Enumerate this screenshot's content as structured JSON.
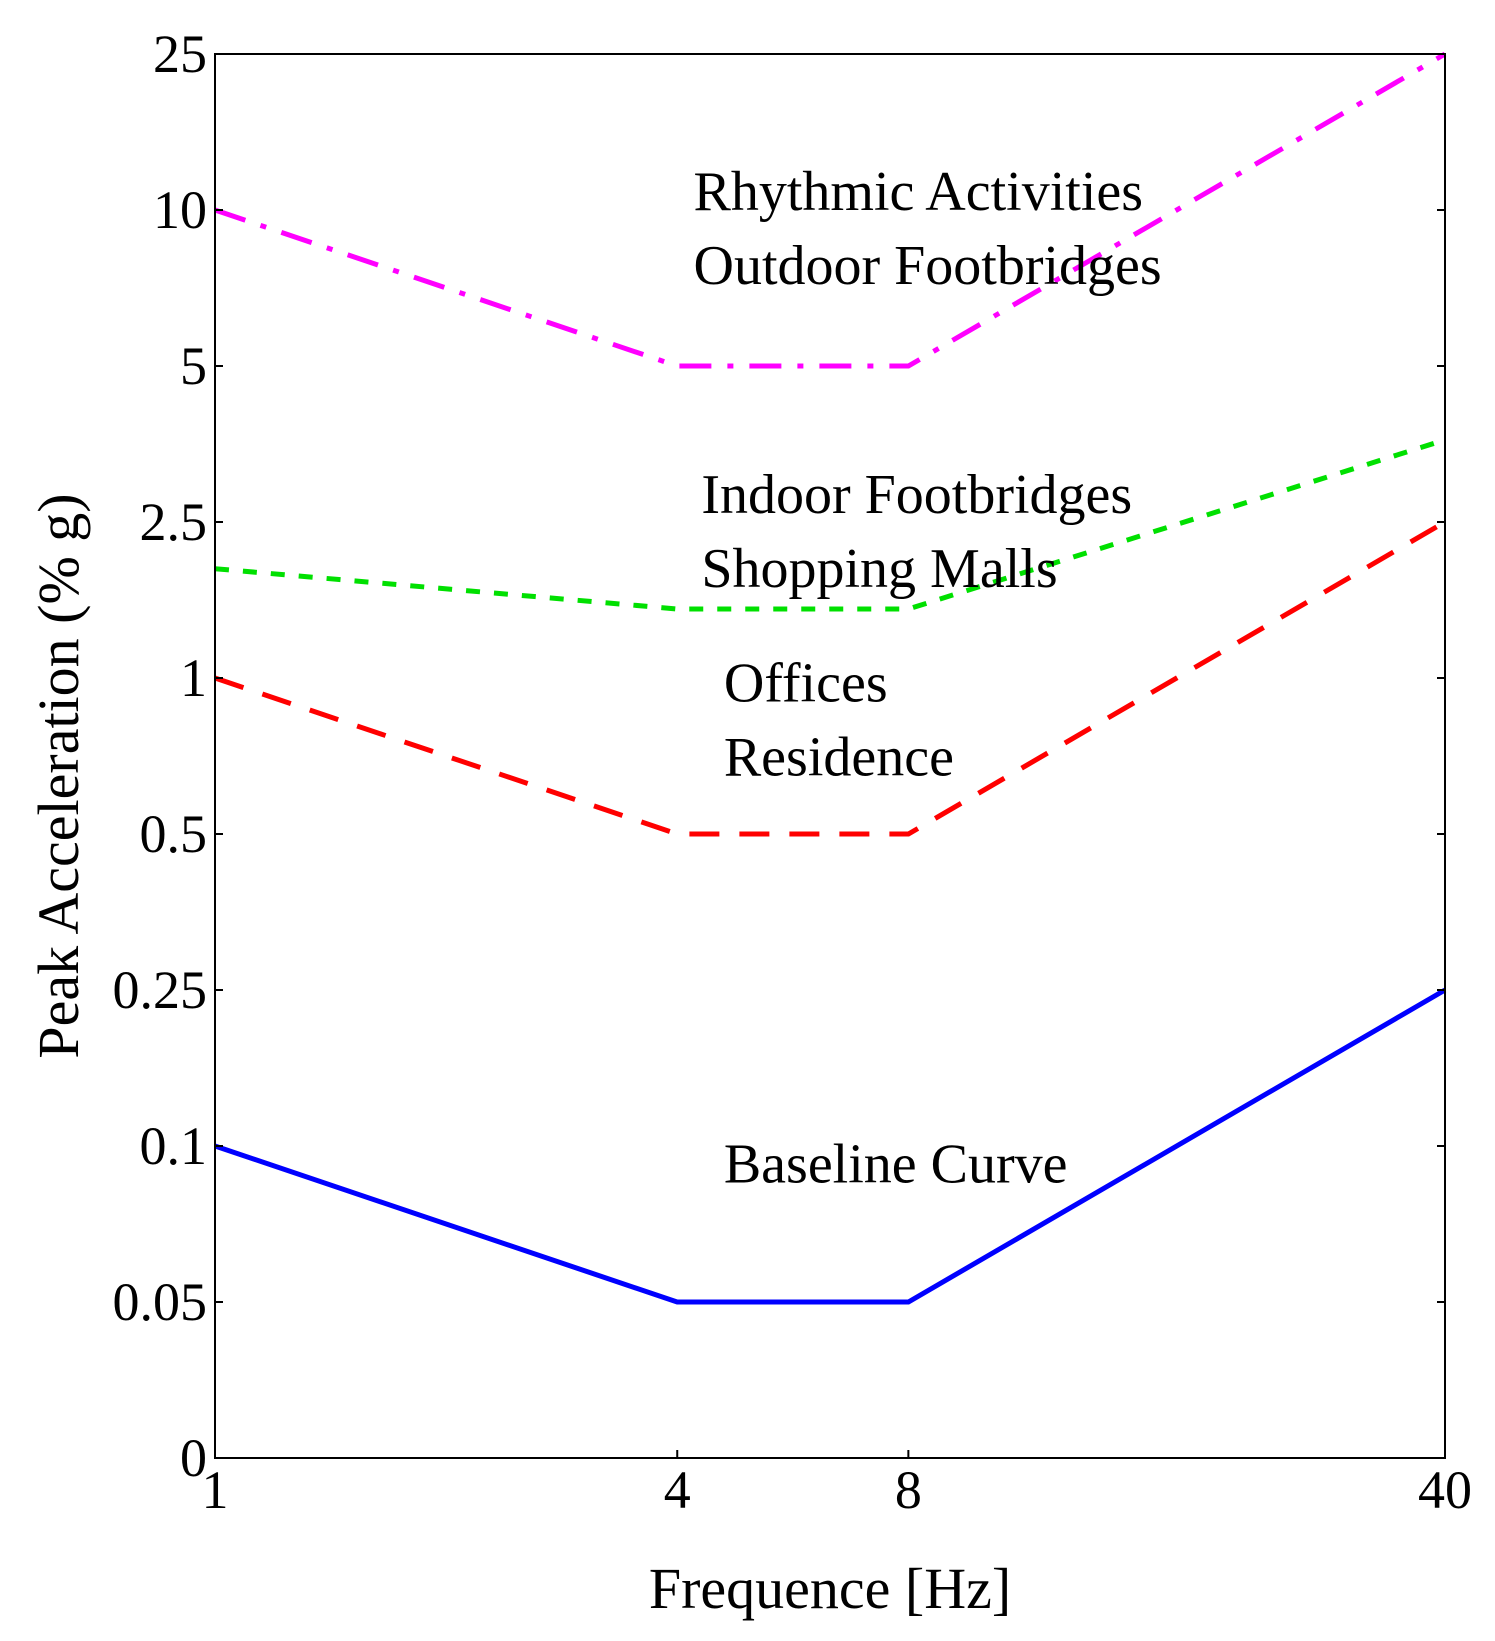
{
  "chart_data": {
    "type": "line",
    "title": "",
    "xlabel": "Frequence [Hz]",
    "ylabel": "Peak Acceleration (% g)",
    "x_scale": "log",
    "y_scale": "categorical (equally spaced levels)",
    "x_ticks": [
      1,
      4,
      8,
      40
    ],
    "x_tick_labels": [
      "1",
      "4",
      "8",
      "40"
    ],
    "y_ticks": [
      0,
      0.05,
      0.1,
      0.25,
      0.5,
      1,
      2.5,
      5,
      10,
      25
    ],
    "y_tick_labels": [
      "0",
      "0.05",
      "0.1",
      "0.25",
      "0.5",
      "1",
      "2.5",
      "5",
      "10",
      "25"
    ],
    "xlim": [
      1,
      40
    ],
    "ylim": [
      0,
      25
    ],
    "grid": false,
    "legend": "none",
    "series": [
      {
        "name": "Baseline Curve",
        "color": "#0000ff",
        "dash": "solid",
        "x": [
          1,
          4,
          8,
          40
        ],
        "y": [
          0.1,
          0.05,
          0.05,
          0.25
        ]
      },
      {
        "name": "Offices Residence",
        "color": "#ff0000",
        "dash": "dashed",
        "x": [
          1,
          4,
          8,
          40
        ],
        "y": [
          1,
          0.5,
          0.5,
          2.5
        ]
      },
      {
        "name": "Indoor Footbridges Shopping Malls",
        "color": "#00e000",
        "dash": "dotted",
        "x": [
          1,
          4,
          8,
          40
        ],
        "y": [
          1.9,
          1.5,
          1.5,
          3.6
        ]
      },
      {
        "name": "Rhythmic Activities Outdoor Footbridges",
        "color": "#ff00ff",
        "dash": "dashdot",
        "x": [
          1,
          4,
          8,
          40
        ],
        "y": [
          10,
          5,
          5,
          25
        ]
      }
    ],
    "annotations": [
      {
        "lines": [
          "Rhythmic Activities",
          "Outdoor Footbridges"
        ],
        "x": 4.2,
        "y": 10
      },
      {
        "lines": [
          "Indoor Footbridges",
          "Shopping Malls"
        ],
        "x": 4.3,
        "y": 2.6
      },
      {
        "lines": [
          "Offices",
          "Residence"
        ],
        "x": 4.6,
        "y": 0.9
      },
      {
        "lines": [
          "Baseline Curve"
        ],
        "x": 4.6,
        "y": 0.085
      }
    ]
  }
}
